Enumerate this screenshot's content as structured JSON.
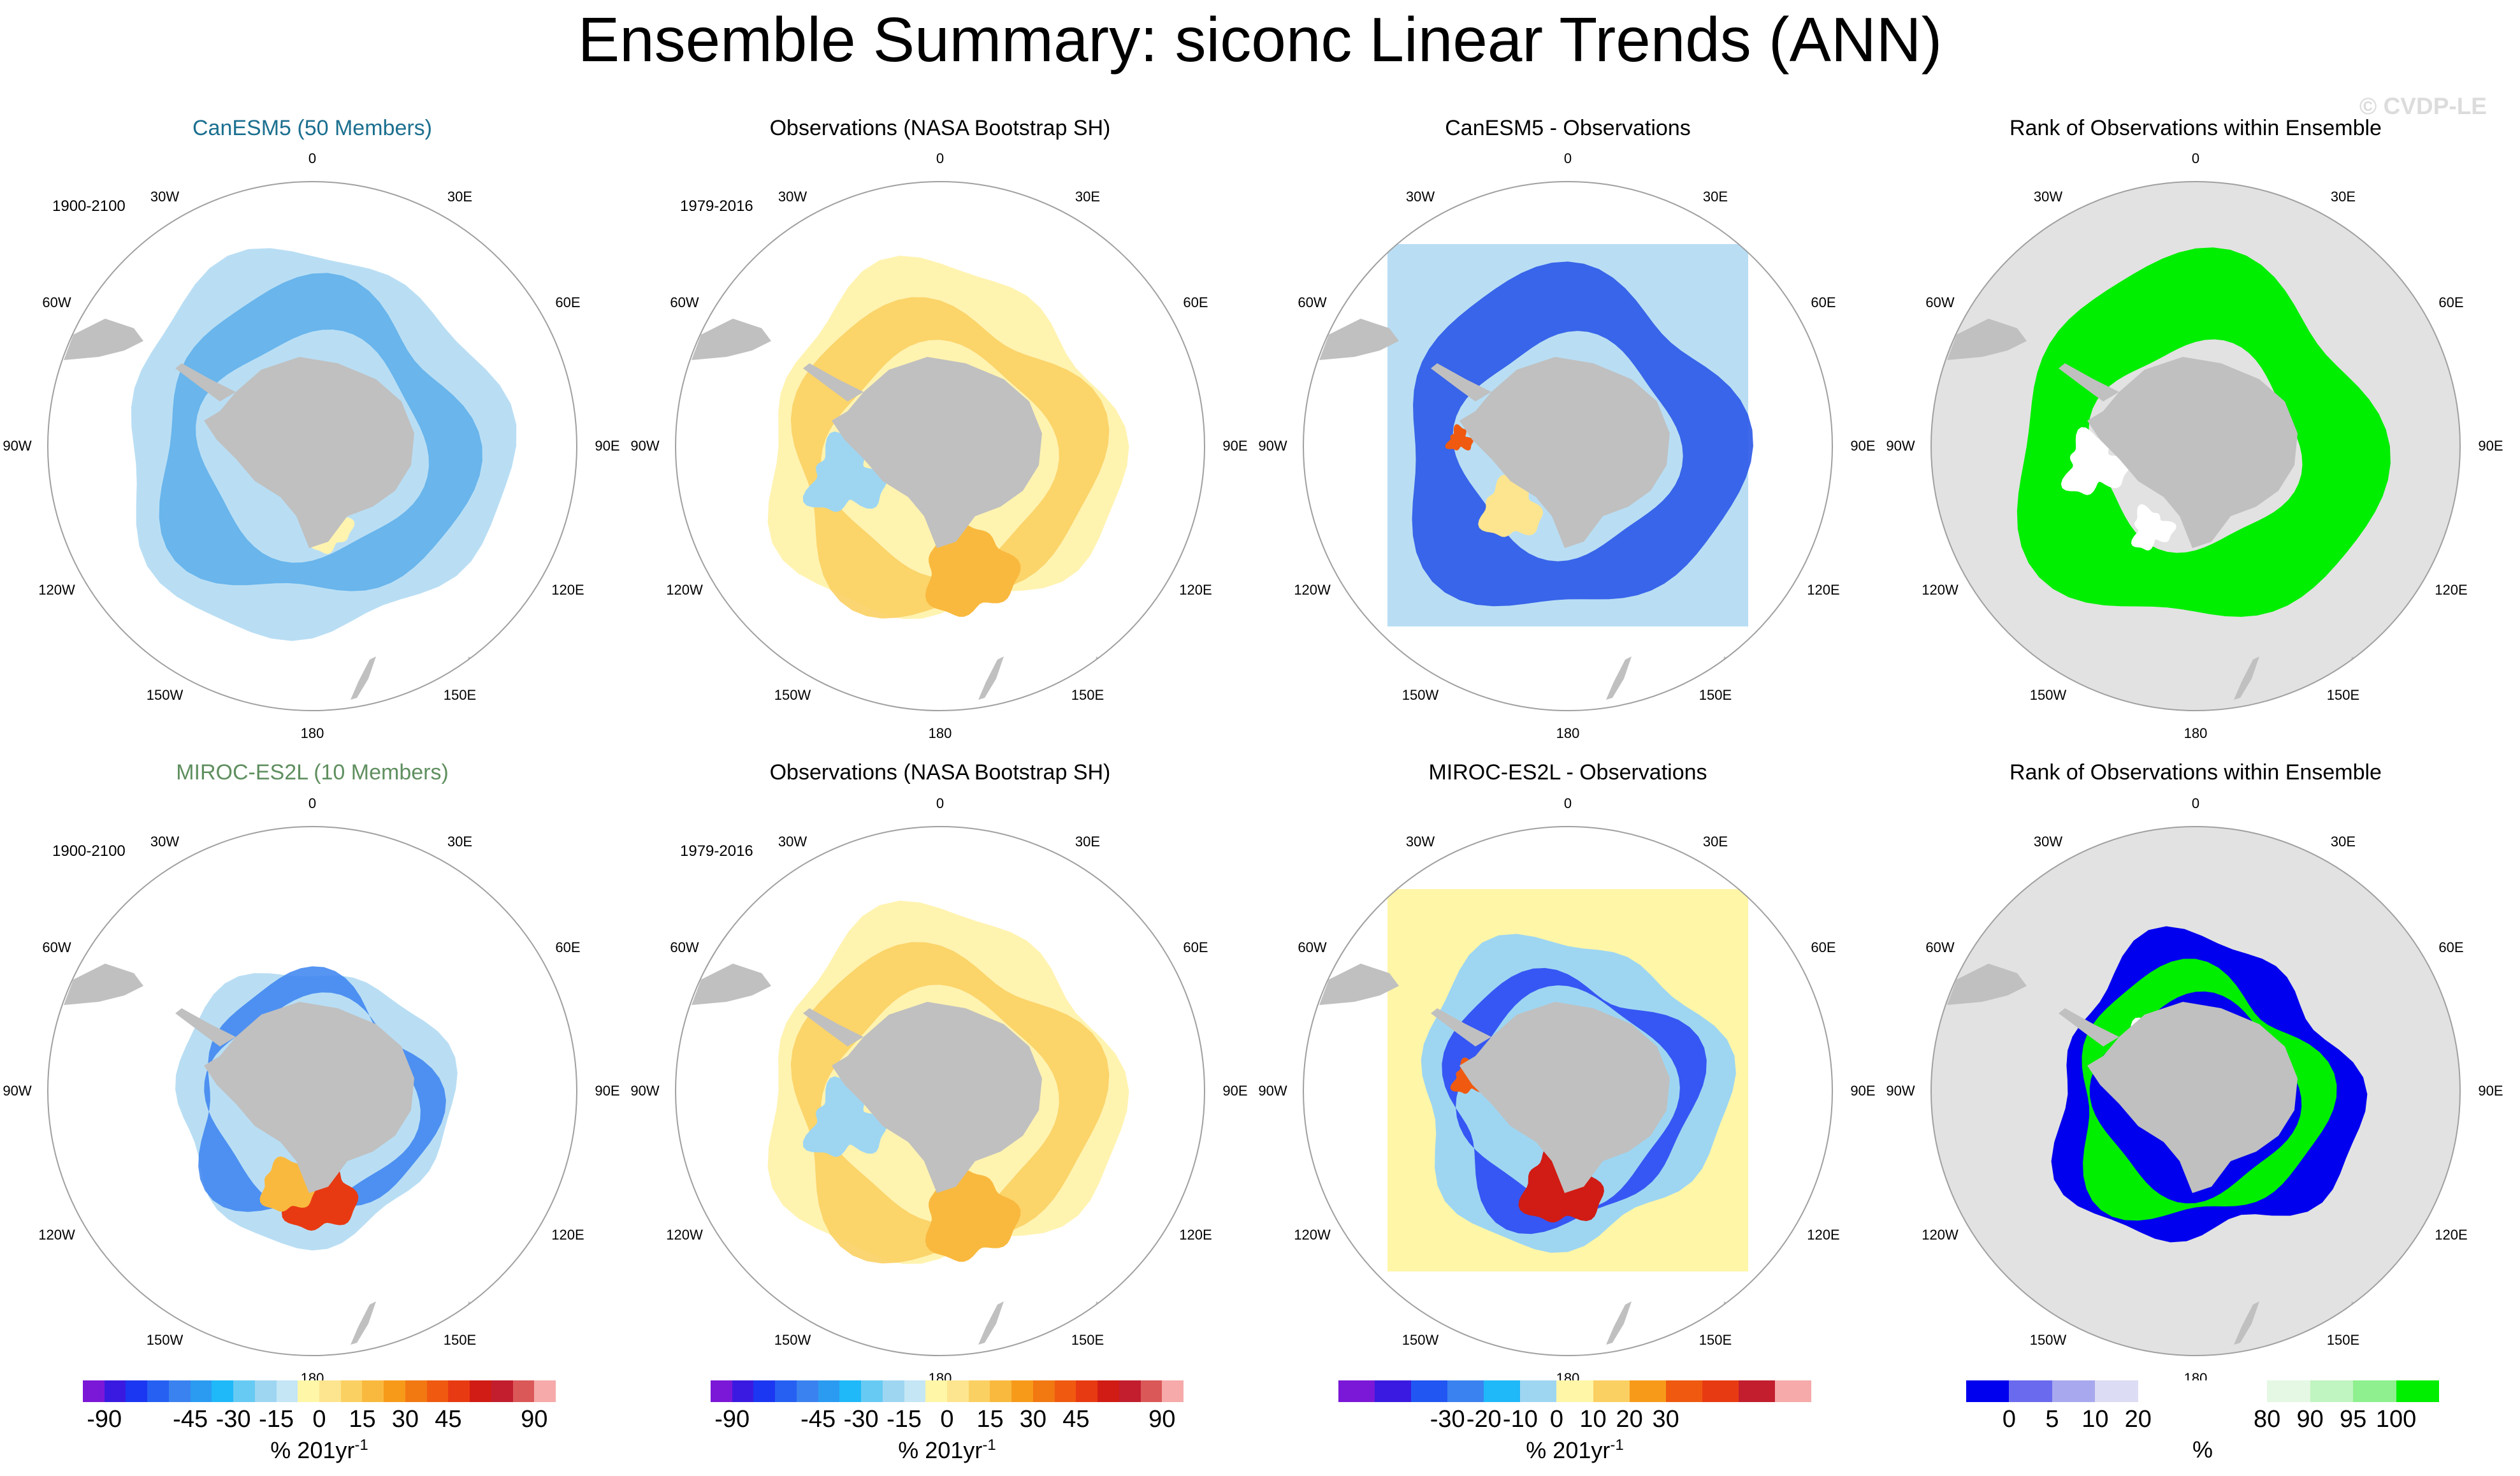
{
  "title": "Ensemble Summary: siconc Linear Trends (ANN)",
  "watermark": "© CVDP-LE",
  "colors": {
    "land": "#c0c0c0",
    "title_canesm": "#1b6f8f",
    "title_miroc": "#5f8f5f"
  },
  "lon_labels": [
    "0",
    "30E",
    "60E",
    "90E",
    "120E",
    "150E",
    "180",
    "150W",
    "120W",
    "90W",
    "60W",
    "30W"
  ],
  "chart_data": [
    {
      "type": "heatmap",
      "panel": "row1-col1",
      "title": "CanESM5 (50 Members)",
      "title_color": "#1b6f8f",
      "period": "1900-2100",
      "field": "canesm_trend"
    },
    {
      "type": "heatmap",
      "panel": "row1-col2",
      "title": "Observations (NASA Bootstrap SH)",
      "period": "1979-2016",
      "field": "obs_trend"
    },
    {
      "type": "heatmap",
      "panel": "row1-col3",
      "title": "CanESM5 - Observations",
      "field": "canesm_minus_obs"
    },
    {
      "type": "heatmap",
      "panel": "row1-col4",
      "title": "Rank of Observations within Ensemble",
      "field": "rank_canesm"
    },
    {
      "type": "heatmap",
      "panel": "row2-col1",
      "title": "MIROC-ES2L (10 Members)",
      "title_color": "#5f8f5f",
      "period": "1900-2100",
      "field": "miroc_trend"
    },
    {
      "type": "heatmap",
      "panel": "row2-col2",
      "title": "Observations (NASA Bootstrap SH)",
      "period": "1979-2016",
      "field": "obs_trend"
    },
    {
      "type": "heatmap",
      "panel": "row2-col3",
      "title": "MIROC-ES2L - Observations",
      "field": "miroc_minus_obs"
    },
    {
      "type": "heatmap",
      "panel": "row2-col4",
      "title": "Rank of Observations within Ensemble",
      "field": "rank_miroc"
    }
  ],
  "colorbars": [
    {
      "name": "trend-colorbar-1",
      "ticks": [
        "-90",
        "-45",
        "-30",
        "-15",
        "0",
        "15",
        "30",
        "45",
        "90"
      ],
      "label": "% 201yr",
      "superscript": "-1",
      "colors": [
        "#7b17d6",
        "#3a1ae0",
        "#1b37f2",
        "#2660f2",
        "#3a82f0",
        "#2b9bf2",
        "#1fb8f8",
        "#67caf3",
        "#9ed6f2",
        "#c4e6f5",
        "#fff6a8",
        "#fde58f",
        "#fbd063",
        "#f9b93e",
        "#f79a1a",
        "#f27812",
        "#ef5a10",
        "#e83a12",
        "#d01c14",
        "#c21e2e",
        "#db5858",
        "#f6aaaa"
      ]
    },
    {
      "name": "trend-colorbar-2",
      "ticks": [
        "-90",
        "-45",
        "-30",
        "-15",
        "0",
        "15",
        "30",
        "45",
        "90"
      ],
      "label": "% 201yr",
      "superscript": "-1",
      "colors": [
        "#7b17d6",
        "#3a1ae0",
        "#1b37f2",
        "#2660f2",
        "#3a82f0",
        "#2b9bf2",
        "#1fb8f8",
        "#67caf3",
        "#9ed6f2",
        "#c4e6f5",
        "#fff6a8",
        "#fde58f",
        "#fbd063",
        "#f9b93e",
        "#f79a1a",
        "#f27812",
        "#ef5a10",
        "#e83a12",
        "#d01c14",
        "#c21e2e",
        "#db5858",
        "#f6aaaa"
      ]
    },
    {
      "name": "diff-colorbar",
      "ticks": [
        "-30",
        "-20",
        "-10",
        "0",
        "10",
        "20",
        "30"
      ],
      "label": "% 201yr",
      "superscript": "-1",
      "colors": [
        "#7b17d6",
        "#3a1ae0",
        "#2156f2",
        "#3a82f0",
        "#1fb8f8",
        "#9ed6f2",
        "#fff6a8",
        "#fbd063",
        "#f79a1a",
        "#ef5a10",
        "#e83a12",
        "#c21e2e",
        "#f6aaaa"
      ]
    },
    {
      "name": "rank-colorbar",
      "ticks": [
        "0",
        "5",
        "10",
        "20",
        "80",
        "90",
        "95",
        "100"
      ],
      "label": "%",
      "superscript": "",
      "colors": [
        "#0000ee",
        "#6a6aee",
        "#a8a8ee",
        "#dcdcf4",
        "#ffffff",
        "#ffffff",
        "#ffffff",
        "#e4f8e4",
        "#c0f4c0",
        "#8ef08e",
        "#00ee00"
      ]
    }
  ]
}
